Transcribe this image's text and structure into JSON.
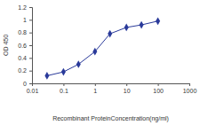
{
  "chart_data": {
    "type": "line",
    "x_label": "Recombinant ProteinConcentration(ng/ml)",
    "y_label": "OD 450",
    "x": [
      0.03,
      0.1,
      0.3,
      1,
      3,
      10,
      30,
      100
    ],
    "values": [
      0.12,
      0.18,
      0.3,
      0.5,
      0.78,
      0.88,
      0.92,
      0.98
    ],
    "color": "#2a3a9a",
    "marker": "diamond",
    "line_style": "solid",
    "log": "x",
    "grid": false,
    "xlim": [
      0.01,
      1000
    ],
    "xticks": [
      0.01,
      0.1,
      1,
      10,
      100,
      1000
    ],
    "ylim": [
      0,
      1.2
    ],
    "yticks": [
      0,
      0.2,
      0.4,
      0.6,
      0.8,
      1,
      1.2
    ]
  }
}
